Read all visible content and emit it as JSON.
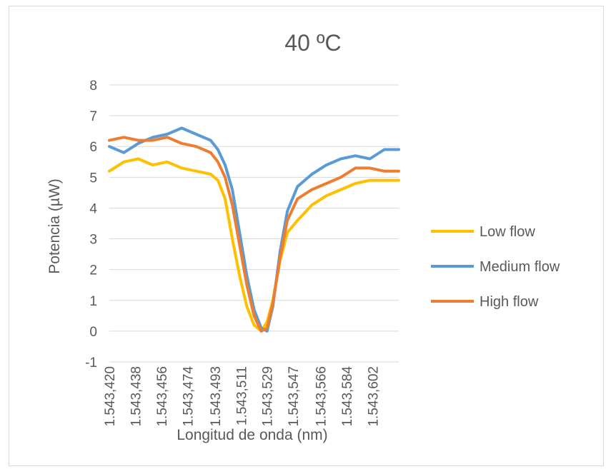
{
  "chart_data": {
    "type": "line",
    "title": "40 ºC",
    "xlabel": "Longitud de onda (nm)",
    "ylabel": "Potencia (µW)",
    "x_tick_labels": [
      "1.543,420",
      "1.543,438",
      "1.543,456",
      "1.543,474",
      "1.543,493",
      "1.543,511",
      "1.543,529",
      "1.543,547",
      "1.543,566",
      "1.543,584",
      "1.543,602"
    ],
    "x_tick_values": [
      1543.42,
      1543.438,
      1543.456,
      1543.474,
      1543.493,
      1543.511,
      1543.529,
      1543.547,
      1543.566,
      1543.584,
      1543.602
    ],
    "xlim": [
      1543.42,
      1543.62
    ],
    "y_ticks": [
      "-1",
      "0",
      "1",
      "2",
      "3",
      "4",
      "5",
      "6",
      "7",
      "8"
    ],
    "ylim": [
      -1,
      8
    ],
    "grid": true,
    "legend_position": "right",
    "x": [
      1543.42,
      1543.43,
      1543.44,
      1543.45,
      1543.46,
      1543.47,
      1543.48,
      1543.49,
      1543.495,
      1543.5,
      1543.505,
      1543.51,
      1543.515,
      1543.52,
      1543.525,
      1543.529,
      1543.533,
      1543.538,
      1543.543,
      1543.55,
      1543.56,
      1543.57,
      1543.58,
      1543.59,
      1543.6,
      1543.61,
      1543.62
    ],
    "series": [
      {
        "name": "Low flow",
        "color": "#FFC000",
        "values": [
          5.2,
          5.5,
          5.6,
          5.4,
          5.5,
          5.3,
          5.2,
          5.1,
          4.9,
          4.3,
          3.0,
          1.8,
          0.8,
          0.2,
          0.0,
          0.3,
          1.0,
          2.3,
          3.2,
          3.6,
          4.1,
          4.4,
          4.6,
          4.8,
          4.9,
          4.9,
          4.9
        ]
      },
      {
        "name": "Medium flow",
        "color": "#5B9BD5",
        "values": [
          6.0,
          5.8,
          6.1,
          6.3,
          6.4,
          6.6,
          6.4,
          6.2,
          5.9,
          5.4,
          4.6,
          3.2,
          1.8,
          0.7,
          0.1,
          0.0,
          0.8,
          2.6,
          3.9,
          4.7,
          5.1,
          5.4,
          5.6,
          5.7,
          5.6,
          5.9,
          5.9
        ]
      },
      {
        "name": "High flow",
        "color": "#ED7D31",
        "values": [
          6.2,
          6.3,
          6.2,
          6.2,
          6.3,
          6.1,
          6.0,
          5.8,
          5.5,
          5.0,
          4.1,
          2.8,
          1.5,
          0.5,
          0.0,
          0.1,
          0.9,
          2.4,
          3.6,
          4.3,
          4.6,
          4.8,
          5.0,
          5.3,
          5.3,
          5.2,
          5.2
        ]
      }
    ]
  }
}
